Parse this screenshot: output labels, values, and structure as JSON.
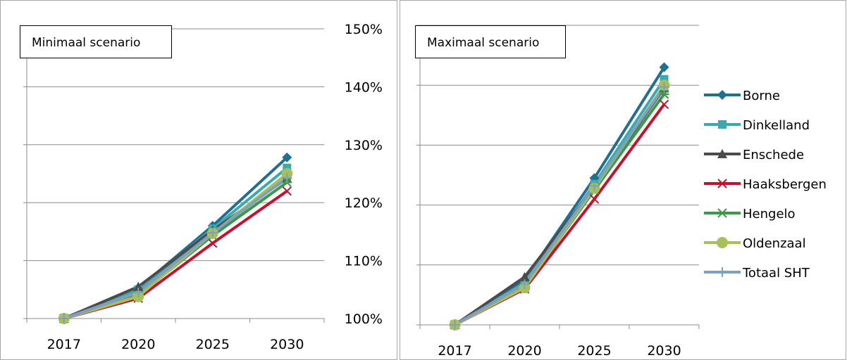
{
  "chart_data": [
    {
      "type": "line",
      "title": "Minimaal scenario",
      "categories": [
        "2017",
        "2020",
        "2025",
        "2030"
      ],
      "ylim": [
        1.0,
        1.5
      ],
      "yticks": [
        "100%",
        "110%",
        "120%",
        "130%",
        "140%",
        "150%"
      ],
      "grid": true,
      "series": [
        {
          "name": "Borne",
          "values": [
            1.0,
            1.052,
            1.16,
            1.278
          ]
        },
        {
          "name": "Dinkelland",
          "values": [
            1.0,
            1.05,
            1.155,
            1.26
          ]
        },
        {
          "name": "Enschede",
          "values": [
            1.0,
            1.055,
            1.152,
            1.242
          ]
        },
        {
          "name": "Haaksbergen",
          "values": [
            1.0,
            1.035,
            1.13,
            1.22
          ]
        },
        {
          "name": "Hengelo",
          "values": [
            1.0,
            1.04,
            1.143,
            1.235
          ]
        },
        {
          "name": "Oldenzaal",
          "values": [
            1.0,
            1.038,
            1.147,
            1.25
          ]
        },
        {
          "name": "Totaal SHT",
          "values": [
            1.0,
            1.045,
            1.148,
            1.243
          ]
        }
      ]
    },
    {
      "type": "line",
      "title": "Maximaal scenario",
      "categories": [
        "2017",
        "2020",
        "2025",
        "2030"
      ],
      "ylim": [
        1.0,
        1.5
      ],
      "grid": true,
      "legend": "right",
      "series": [
        {
          "name": "Borne",
          "values": [
            1.0,
            1.075,
            1.245,
            1.43
          ]
        },
        {
          "name": "Dinkelland",
          "values": [
            1.0,
            1.07,
            1.235,
            1.41
          ]
        },
        {
          "name": "Enschede",
          "values": [
            1.0,
            1.08,
            1.23,
            1.395
          ]
        },
        {
          "name": "Haaksbergen",
          "values": [
            1.0,
            1.06,
            1.21,
            1.368
          ]
        },
        {
          "name": "Hengelo",
          "values": [
            1.0,
            1.063,
            1.225,
            1.385
          ]
        },
        {
          "name": "Oldenzaal",
          "values": [
            1.0,
            1.062,
            1.228,
            1.4
          ]
        },
        {
          "name": "Totaal SHT",
          "values": [
            1.0,
            1.068,
            1.232,
            1.397
          ]
        }
      ]
    }
  ],
  "legend": [
    {
      "name": "Borne",
      "color": "#1f6f93",
      "marker": "diamond"
    },
    {
      "name": "Dinkelland",
      "color": "#3aaab0",
      "marker": "square"
    },
    {
      "name": "Enschede",
      "color": "#4b4b4b",
      "marker": "triangle"
    },
    {
      "name": "Haaksbergen",
      "color": "#c8102e",
      "marker": "x"
    },
    {
      "name": "Hengelo",
      "color": "#3a9a45",
      "marker": "asterisk"
    },
    {
      "name": "Oldenzaal",
      "color": "#a6c05a",
      "marker": "circle"
    },
    {
      "name": "Totaal SHT",
      "color": "#7f9fbf",
      "marker": "plus"
    }
  ]
}
